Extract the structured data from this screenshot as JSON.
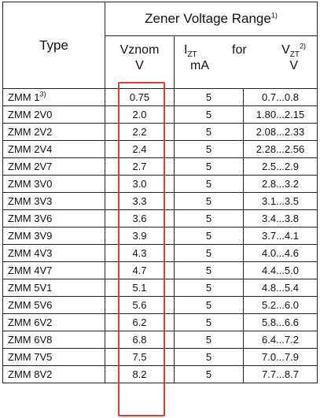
{
  "header": {
    "type_label": "Type",
    "group_title": "Zener Voltage Range",
    "group_title_note": "1)",
    "vznom_label": "Vznom",
    "vznom_unit": "V",
    "izt_label": "I",
    "izt_sub": "ZT",
    "izt_unit": "mA",
    "for_label": "for",
    "vzt_label": "V",
    "vzt_sub": "ZT",
    "vzt_note": "2)",
    "vzt_unit": "V"
  },
  "rows": [
    {
      "type": "ZMM 1",
      "type_note": "3)",
      "vznom": "0.75",
      "izt": "5",
      "range": "0.7...0.8"
    },
    {
      "type": "ZMM 2V0",
      "type_note": "",
      "vznom": "2.0",
      "izt": "5",
      "range": "1.80...2.15"
    },
    {
      "type": "ZMM 2V2",
      "type_note": "",
      "vznom": "2.2",
      "izt": "5",
      "range": "2.08...2.33"
    },
    {
      "type": "ZMM 2V4",
      "type_note": "",
      "vznom": "2.4",
      "izt": "5",
      "range": "2.28...2.56"
    },
    {
      "type": "ZMM 2V7",
      "type_note": "",
      "vznom": "2.7",
      "izt": "5",
      "range": "2.5...2.9"
    },
    {
      "type": "ZMM 3V0",
      "type_note": "",
      "vznom": "3.0",
      "izt": "5",
      "range": "2.8...3.2"
    },
    {
      "type": "ZMM 3V3",
      "type_note": "",
      "vznom": "3.3",
      "izt": "5",
      "range": "3.1...3.5"
    },
    {
      "type": "ZMM 3V6",
      "type_note": "",
      "vznom": "3.6",
      "izt": "5",
      "range": "3.4...3.8"
    },
    {
      "type": "ZMM 3V9",
      "type_note": "",
      "vznom": "3.9",
      "izt": "5",
      "range": "3.7...4.1"
    },
    {
      "type": "ZMM 4V3",
      "type_note": "",
      "vznom": "4.3",
      "izt": "5",
      "range": "4.0...4.6"
    },
    {
      "type": "ZMM 4V7",
      "type_note": "",
      "vznom": "4.7",
      "izt": "5",
      "range": "4.4...5.0"
    },
    {
      "type": "ZMM 5V1",
      "type_note": "",
      "vznom": "5.1",
      "izt": "5",
      "range": "4.8...5.4"
    },
    {
      "type": "ZMM 5V6",
      "type_note": "",
      "vznom": "5.6",
      "izt": "5",
      "range": "5.2...6.0"
    },
    {
      "type": "ZMM 6V2",
      "type_note": "",
      "vznom": "6.2",
      "izt": "5",
      "range": "5.8...6.6"
    },
    {
      "type": "ZMM 6V8",
      "type_note": "",
      "vznom": "6.8",
      "izt": "5",
      "range": "6.4...7.2"
    },
    {
      "type": "ZMM 7V5",
      "type_note": "",
      "vznom": "7.5",
      "izt": "5",
      "range": "7.0...7.9"
    },
    {
      "type": "ZMM 8V2",
      "type_note": "",
      "vznom": "8.2",
      "izt": "5",
      "range": "7.7...8.7"
    }
  ],
  "highlight_color": "#e53935"
}
